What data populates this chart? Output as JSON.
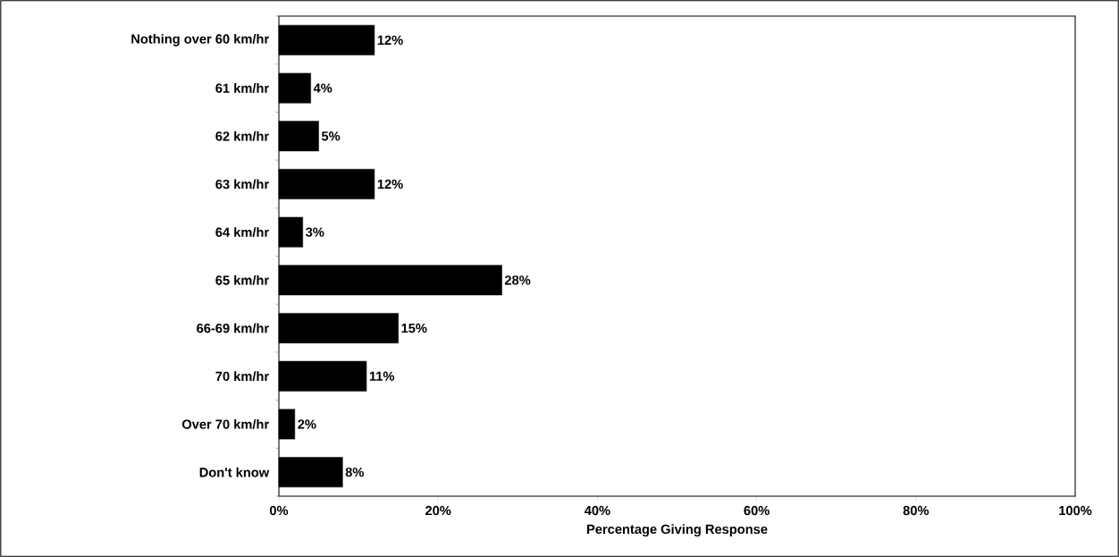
{
  "chart_data": {
    "type": "bar",
    "orientation": "horizontal",
    "xlabel": "Percentage Giving Response",
    "categories": [
      "Nothing over 60 km/hr",
      "61 km/hr",
      "62 km/hr",
      "63 km/hr",
      "64 km/hr",
      "65 km/hr",
      "66-69 km/hr",
      "70 km/hr",
      "Over 70 km/hr",
      "Don't know"
    ],
    "values": [
      12,
      4,
      5,
      12,
      3,
      28,
      15,
      11,
      2,
      8
    ],
    "value_labels": [
      "12%",
      "4%",
      "5%",
      "12%",
      "3%",
      "28%",
      "15%",
      "11%",
      "2%",
      "8%"
    ],
    "color": "#000000",
    "xlim": [
      0,
      100
    ],
    "xticks": [
      {
        "value": 0,
        "label": "0%"
      },
      {
        "value": 20,
        "label": "20%"
      },
      {
        "value": 40,
        "label": "40%"
      },
      {
        "value": 60,
        "label": "60%"
      },
      {
        "value": 80,
        "label": "80%"
      },
      {
        "value": 100,
        "label": "100%"
      }
    ]
  }
}
